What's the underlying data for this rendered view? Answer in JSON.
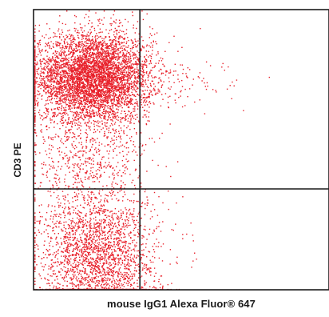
{
  "chart_data": {
    "type": "scatter",
    "title": "",
    "xlabel": "mouse IgG1 Alexa Fluor® 647",
    "ylabel": "CD3 PE",
    "xlim": [
      0,
      1
    ],
    "ylim": [
      0,
      1
    ],
    "grid": false,
    "color": "#e8202a",
    "gates": {
      "x": 0.36,
      "y": 0.36
    },
    "populations": [
      {
        "name": "",
        "n": 5200,
        "cx": 0.2,
        "cy": 0.76,
        "sx": 0.1,
        "sy": 0.08
      },
      {
        "name": "",
        "n": 2300,
        "cx": 0.22,
        "cy": 0.12,
        "sx": 0.1,
        "sy": 0.11
      },
      {
        "name": "",
        "n": 700,
        "cx": 0.18,
        "cy": 0.45,
        "sx": 0.1,
        "sy": 0.12
      },
      {
        "name": "",
        "n": 60,
        "cx": 0.55,
        "cy": 0.73,
        "sx": 0.08,
        "sy": 0.04
      }
    ]
  }
}
